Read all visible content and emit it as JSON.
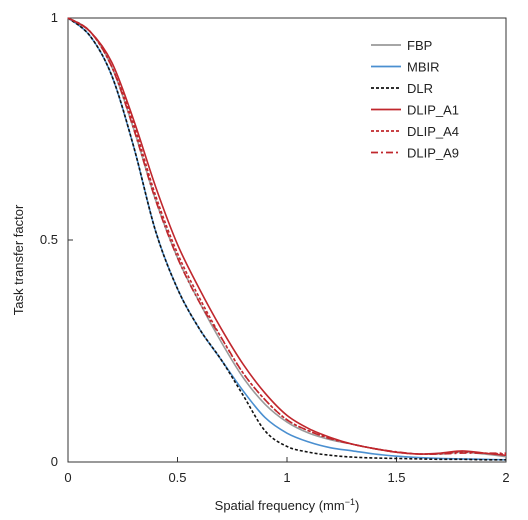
{
  "chart_data": {
    "type": "line",
    "title": "",
    "xlabel": "Spatial frequency (mm",
    "xlabel_sup": "−1",
    "xlabel_suffix": ")",
    "ylabel": "Task transfer factor",
    "xlim": [
      0,
      2
    ],
    "ylim": [
      0,
      1
    ],
    "x_ticks": [
      0,
      0.5,
      1,
      1.5,
      2
    ],
    "x_tick_labels": [
      "0",
      "0.5",
      "1",
      "1.5",
      "2"
    ],
    "y_ticks": [
      0,
      0.5,
      1
    ],
    "y_tick_labels": [
      "0",
      "0.5",
      "1"
    ],
    "grid": false,
    "legend_position": "top-right",
    "series": [
      {
        "name": "FBP",
        "color": "#9a9a9a",
        "dash": "solid",
        "x": [
          0,
          0.1,
          0.2,
          0.3,
          0.4,
          0.5,
          0.6,
          0.7,
          0.8,
          0.9,
          1.0,
          1.1,
          1.2,
          1.3,
          1.4,
          1.5,
          1.6,
          1.7,
          1.8,
          1.9,
          2.0
        ],
        "y": [
          1.0,
          0.97,
          0.89,
          0.75,
          0.59,
          0.46,
          0.36,
          0.27,
          0.19,
          0.13,
          0.09,
          0.065,
          0.05,
          0.04,
          0.03,
          0.022,
          0.018,
          0.018,
          0.022,
          0.018,
          0.012
        ]
      },
      {
        "name": "MBIR",
        "color": "#4a8fd0",
        "dash": "solid",
        "x": [
          0,
          0.1,
          0.2,
          0.3,
          0.4,
          0.5,
          0.6,
          0.7,
          0.8,
          0.9,
          1.0,
          1.1,
          1.2,
          1.3,
          1.4,
          1.5,
          1.6,
          1.7,
          1.8,
          1.9,
          2.0
        ],
        "y": [
          1.0,
          0.96,
          0.87,
          0.71,
          0.52,
          0.39,
          0.3,
          0.23,
          0.16,
          0.1,
          0.065,
          0.045,
          0.032,
          0.025,
          0.018,
          0.013,
          0.01,
          0.008,
          0.007,
          0.006,
          0.005
        ]
      },
      {
        "name": "DLR",
        "color": "#111111",
        "dash": "dotted",
        "x": [
          0,
          0.1,
          0.2,
          0.3,
          0.4,
          0.5,
          0.6,
          0.7,
          0.8,
          0.9,
          1.0,
          1.1,
          1.2,
          1.3,
          1.4,
          1.5,
          1.6,
          1.7,
          1.8,
          1.9,
          2.0
        ],
        "y": [
          1.0,
          0.96,
          0.87,
          0.71,
          0.52,
          0.39,
          0.3,
          0.23,
          0.15,
          0.07,
          0.035,
          0.022,
          0.015,
          0.011,
          0.009,
          0.008,
          0.007,
          0.006,
          0.006,
          0.005,
          0.005
        ]
      },
      {
        "name": "DLIP_A1",
        "color": "#c0272d",
        "dash": "solid",
        "x": [
          0,
          0.1,
          0.2,
          0.3,
          0.4,
          0.5,
          0.6,
          0.7,
          0.8,
          0.9,
          1.0,
          1.1,
          1.2,
          1.3,
          1.4,
          1.5,
          1.6,
          1.7,
          1.8,
          1.9,
          2.0
        ],
        "y": [
          1.0,
          0.97,
          0.9,
          0.77,
          0.62,
          0.49,
          0.39,
          0.3,
          0.22,
          0.155,
          0.105,
          0.075,
          0.055,
          0.04,
          0.03,
          0.022,
          0.018,
          0.02,
          0.025,
          0.02,
          0.015
        ]
      },
      {
        "name": "DLIP_A4",
        "color": "#c0272d",
        "dash": "dotted",
        "x": [
          0,
          0.1,
          0.2,
          0.3,
          0.4,
          0.5,
          0.6,
          0.7,
          0.8,
          0.9,
          1.0,
          1.1,
          1.2,
          1.3,
          1.4,
          1.5,
          1.6,
          1.7,
          1.8,
          1.9,
          2.0
        ],
        "y": [
          1.0,
          0.97,
          0.89,
          0.76,
          0.6,
          0.47,
          0.37,
          0.28,
          0.2,
          0.14,
          0.095,
          0.07,
          0.053,
          0.04,
          0.03,
          0.022,
          0.018,
          0.019,
          0.022,
          0.02,
          0.018
        ]
      },
      {
        "name": "DLIP_A9",
        "color": "#c0272d",
        "dash": "dashdot",
        "x": [
          0,
          0.1,
          0.2,
          0.3,
          0.4,
          0.5,
          0.6,
          0.7,
          0.8,
          0.9,
          1.0,
          1.1,
          1.2,
          1.3,
          1.4,
          1.5,
          1.6,
          1.7,
          1.8,
          1.9,
          2.0
        ],
        "y": [
          1.0,
          0.97,
          0.89,
          0.75,
          0.59,
          0.46,
          0.36,
          0.28,
          0.2,
          0.14,
          0.095,
          0.07,
          0.052,
          0.04,
          0.03,
          0.023,
          0.018,
          0.018,
          0.02,
          0.02,
          0.02
        ]
      }
    ]
  }
}
